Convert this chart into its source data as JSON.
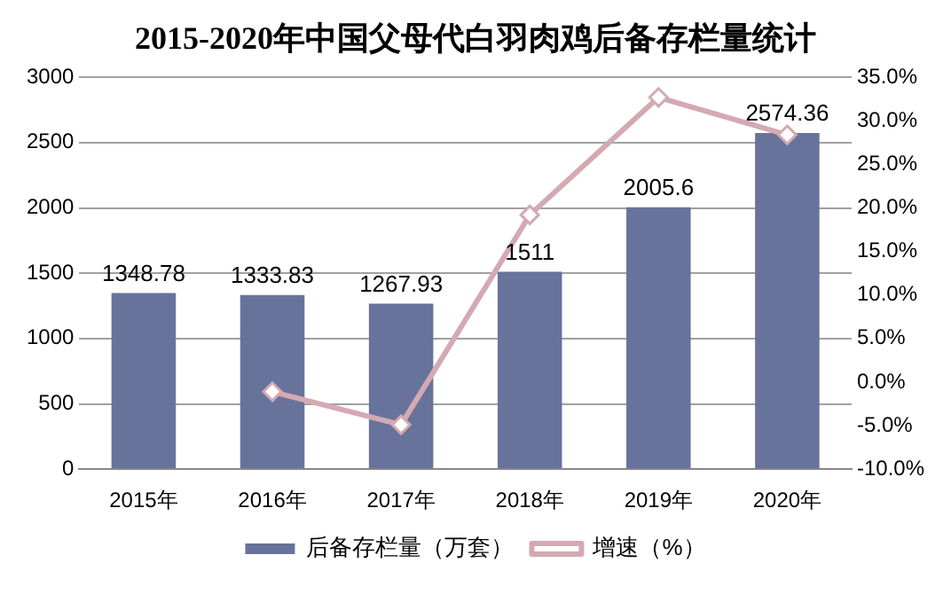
{
  "chart_data": {
    "type": "bar",
    "title": "2015-2020年中国父母代白羽肉鸡后备存栏量统计",
    "categories": [
      "2015年",
      "2016年",
      "2017年",
      "2018年",
      "2019年",
      "2020年"
    ],
    "series": [
      {
        "name": "后备存栏量（万套）",
        "color": "#68739c",
        "values": [
          1348.78,
          1333.83,
          1267.93,
          1511,
          2005.6,
          2574.36
        ],
        "value_labels": [
          "1348.78",
          "1333.83",
          "1267.93",
          "1511",
          "2005.6",
          "2574.36"
        ]
      },
      {
        "name": "增速（%）",
        "type": "line",
        "axis": "y2",
        "color": "#d4a9b2",
        "marker": "diamond",
        "values": [
          null,
          -1.1,
          -4.9,
          19.2,
          32.7,
          28.4
        ]
      }
    ],
    "ylim": [
      0,
      3000
    ],
    "yticks": [
      0,
      500,
      1000,
      1500,
      2000,
      2500,
      3000
    ],
    "y2lim": [
      -10,
      35
    ],
    "y2ticks": [
      {
        "value": -10,
        "label": "-10.0%"
      },
      {
        "value": -5,
        "label": "-5.0%"
      },
      {
        "value": 0,
        "label": "0.0%"
      },
      {
        "value": 5,
        "label": "5.0%"
      },
      {
        "value": 10,
        "label": "10.0%"
      },
      {
        "value": 15,
        "label": "15.0%"
      },
      {
        "value": 20,
        "label": "20.0%"
      },
      {
        "value": 25,
        "label": "25.0%"
      },
      {
        "value": 30,
        "label": "30.0%"
      },
      {
        "value": 35,
        "label": "35.0%"
      }
    ],
    "grid": "y",
    "legend": "bottom"
  }
}
